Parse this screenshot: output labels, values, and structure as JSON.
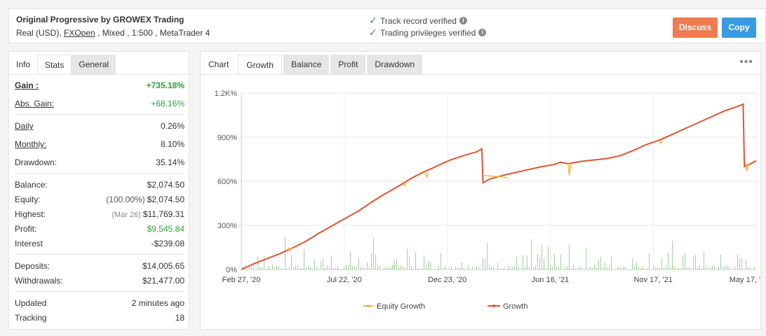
{
  "header": {
    "title": "Original Progressive by GROWEX Trading",
    "sub_prefix": "Real (USD), ",
    "broker": "FXOpen",
    "sub_suffix": " , Mixed , 1:500 , MetaTrader 4",
    "verify_1": "Track record verified",
    "verify_2": "Trading privileges verified",
    "discuss_label": "Discuss",
    "copy_label": "Copy"
  },
  "left_tabs": [
    "Info",
    "Stats",
    "General"
  ],
  "stats": {
    "gain_label": "Gain :",
    "gain_value": "+735.18%",
    "abs_gain_label": "Abs. Gain:",
    "abs_gain_value": "+68.16%",
    "daily_label": "Daily",
    "daily_value": "0.26%",
    "monthly_label": "Monthly:",
    "monthly_value": "8.10%",
    "drawdown_label": "Drawdown:",
    "drawdown_value": "35.14%",
    "balance_label": "Balance:",
    "balance_value": "$2,074.50",
    "equity_label": "Equity:",
    "equity_pct": "(100.00%)",
    "equity_value": "$2,074.50",
    "highest_label": "Highest:",
    "highest_date": "(Mar 26)",
    "highest_value": "$11,769.31",
    "profit_label": "Profit:",
    "profit_value": "$9,545.84",
    "interest_label": "Interest",
    "interest_value": "-$239.08",
    "deposits_label": "Deposits:",
    "deposits_value": "$14,005.65",
    "withdrawals_label": "Withdrawals:",
    "withdrawals_value": "$21,477.00",
    "updated_label": "Updated",
    "updated_value": "2 minutes ago",
    "tracking_label": "Tracking",
    "tracking_value": "18"
  },
  "chart_tabs": [
    "Chart",
    "Growth",
    "Balance",
    "Profit",
    "Drawdown"
  ],
  "colors": {
    "growth": "#e0542f",
    "equity": "#f4b63f",
    "volume": "#9ed39a",
    "green": "#2aa23b",
    "discuss": "#ef7b4f",
    "copy": "#3a9be0"
  },
  "chart_data": {
    "type": "line",
    "y_ticks": [
      "0%",
      "300%",
      "600%",
      "900%",
      "1.2K%"
    ],
    "x_ticks": [
      "Feb 27, '20",
      "Jul 22, '20",
      "Dec 23, '20",
      "Jun 16, '21",
      "Nov 17, '21",
      "May 17, '22"
    ],
    "ylim": [
      0,
      1200
    ],
    "grid": true,
    "legend_position": "bottom",
    "series": [
      {
        "name": "Growth",
        "points": [
          [
            0,
            0
          ],
          [
            0.05,
            40
          ],
          [
            0.1,
            75
          ],
          [
            0.15,
            110
          ],
          [
            0.2,
            150
          ],
          [
            0.25,
            195
          ],
          [
            0.3,
            250
          ],
          [
            0.35,
            300
          ],
          [
            0.4,
            350
          ],
          [
            0.45,
            400
          ],
          [
            0.5,
            460
          ],
          [
            0.55,
            515
          ],
          [
            0.6,
            565
          ],
          [
            0.65,
            620
          ],
          [
            0.7,
            665
          ],
          [
            0.72,
            680
          ],
          [
            0.75,
            705
          ],
          [
            0.8,
            745
          ],
          [
            0.85,
            775
          ],
          [
            0.9,
            800
          ],
          [
            0.92,
            820
          ],
          [
            0.925,
            590
          ],
          [
            0.95,
            615
          ],
          [
            1.0,
            640
          ],
          [
            1.05,
            660
          ],
          [
            1.1,
            680
          ],
          [
            1.15,
            700
          ],
          [
            1.2,
            715
          ],
          [
            1.22,
            730
          ],
          [
            1.25,
            720
          ],
          [
            1.3,
            735
          ],
          [
            1.35,
            745
          ],
          [
            1.4,
            755
          ],
          [
            1.45,
            775
          ],
          [
            1.5,
            810
          ],
          [
            1.55,
            850
          ],
          [
            1.6,
            880
          ],
          [
            1.65,
            920
          ],
          [
            1.7,
            960
          ],
          [
            1.75,
            1000
          ],
          [
            1.8,
            1040
          ],
          [
            1.85,
            1080
          ],
          [
            1.9,
            1110
          ],
          [
            1.92,
            1125
          ],
          [
            1.925,
            700
          ],
          [
            1.95,
            720
          ],
          [
            1.97,
            740
          ]
        ]
      },
      {
        "name": "Equity Growth",
        "points": [
          [
            0.18,
            150
          ],
          [
            0.185,
            125
          ],
          [
            0.19,
            145
          ],
          [
            0.62,
            600
          ],
          [
            0.625,
            570
          ],
          [
            0.63,
            595
          ],
          [
            0.7,
            665
          ],
          [
            0.71,
            628
          ],
          [
            0.715,
            660
          ],
          [
            0.925,
            640
          ],
          [
            1.0,
            630
          ],
          [
            1.02,
            620
          ],
          [
            1.25,
            720
          ],
          [
            1.255,
            640
          ],
          [
            1.26,
            715
          ],
          [
            1.6,
            880
          ],
          [
            1.605,
            855
          ],
          [
            1.61,
            880
          ],
          [
            1.93,
            720
          ],
          [
            1.935,
            670
          ],
          [
            1.94,
            718
          ]
        ]
      }
    ],
    "x_range": [
      0,
      1.97
    ],
    "volume_note": "Growth trade-volume bars shown at bottom"
  }
}
